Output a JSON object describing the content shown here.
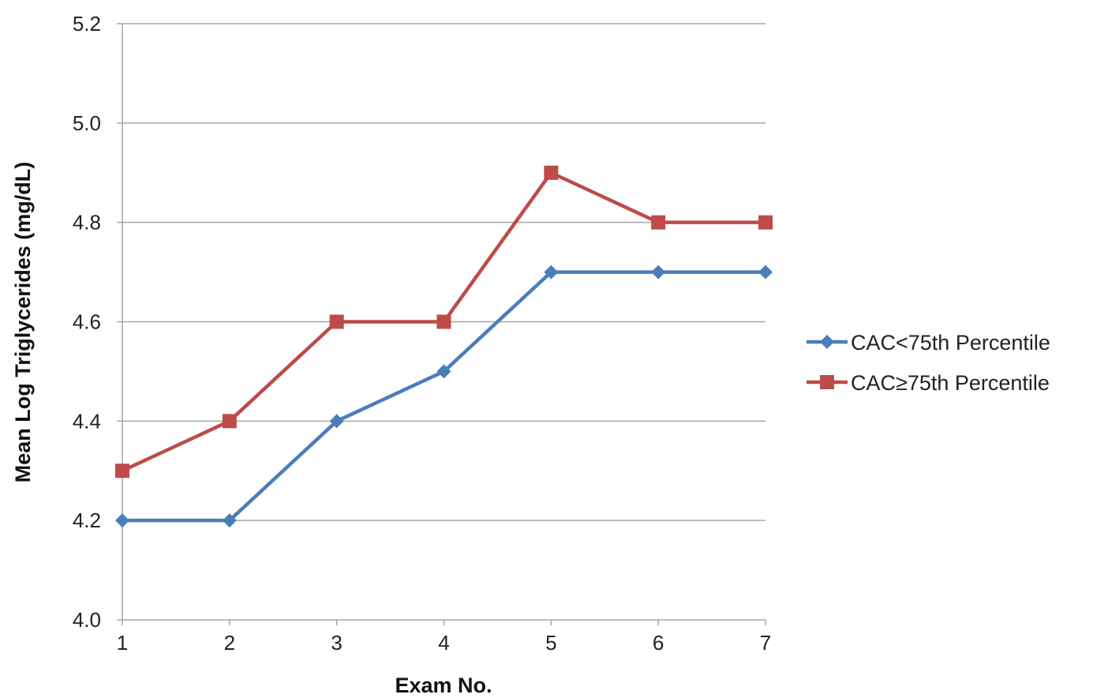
{
  "chart_data": {
    "type": "line",
    "title": "",
    "xlabel": "Exam No.",
    "ylabel": "Mean Log Triglycerides (mg/dL)",
    "x": [
      1,
      2,
      3,
      4,
      5,
      6,
      7
    ],
    "xticks": [
      "1",
      "2",
      "3",
      "4",
      "5",
      "6",
      "7"
    ],
    "ylim": [
      4.0,
      5.2
    ],
    "yticks": [
      "4.0",
      "4.2",
      "4.4",
      "4.6",
      "4.8",
      "5.0",
      "5.2"
    ],
    "grid": true,
    "legend_position": "right",
    "series": [
      {
        "name": "CAC<75th Percentile",
        "values": [
          4.2,
          4.2,
          4.4,
          4.5,
          4.7,
          4.7,
          4.7
        ],
        "color": "#4a7ebb",
        "marker": "diamond"
      },
      {
        "name": "CAC≥75th Percentile",
        "values": [
          4.3,
          4.4,
          4.6,
          4.6,
          4.9,
          4.8,
          4.8
        ],
        "color": "#be4b48",
        "marker": "square"
      }
    ]
  }
}
